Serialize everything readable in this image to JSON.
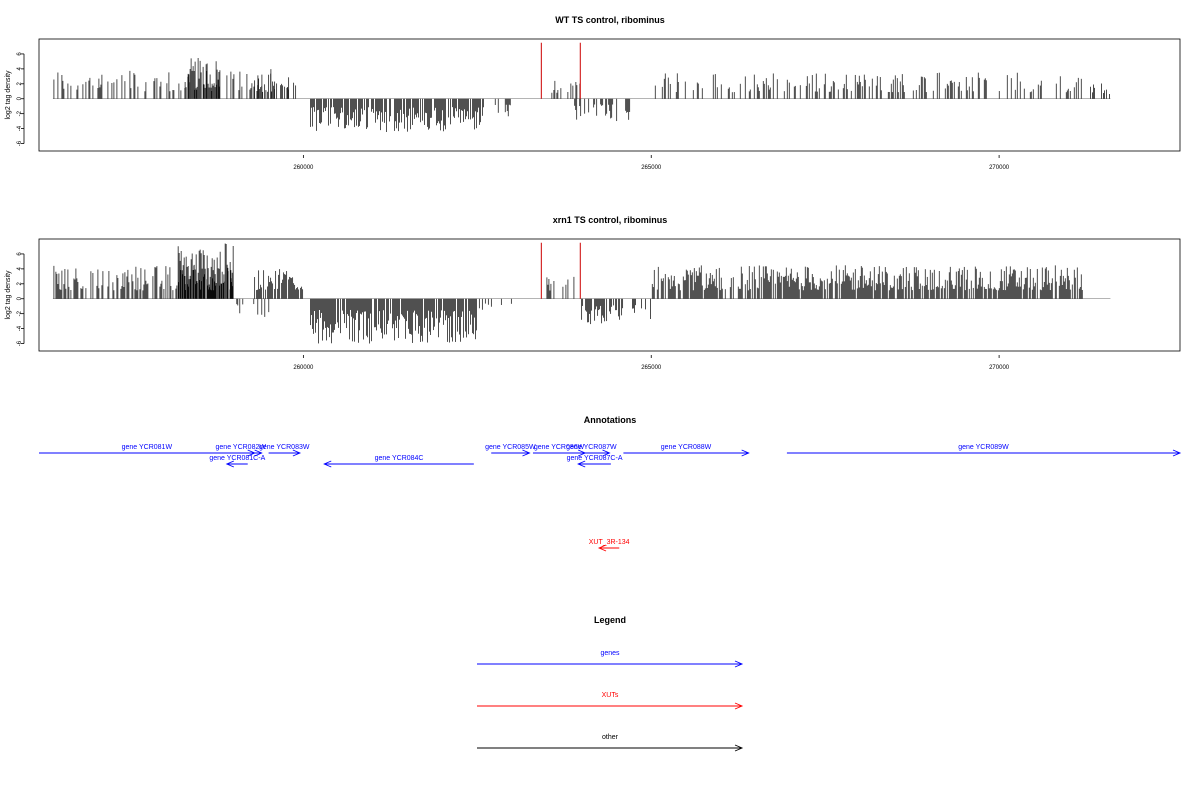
{
  "chart_data": [
    {
      "type": "bar",
      "title": "WT TS control, ribominus",
      "ylabel": "log2 tag density",
      "xlabel": "",
      "xlim": [
        256200,
        272600
      ],
      "ylim": [
        -7,
        8
      ],
      "x_ticks": [
        260000,
        265000,
        270000
      ],
      "x_tick_labels": [
        "260000",
        "265000",
        "270000"
      ],
      "y_ticks": [
        6,
        4,
        2,
        0,
        -2,
        -4,
        -6
      ],
      "bar_color": "#000000",
      "marker_color": "#cc0000",
      "signal_regions": [
        {
          "start": 256400,
          "end": 259800,
          "sign": 1,
          "max": 4,
          "density": 0.35
        },
        {
          "start": 258300,
          "end": 258800,
          "sign": 1,
          "max": 5.5,
          "density": 0.9
        },
        {
          "start": 259300,
          "end": 259900,
          "sign": 1,
          "max": 3.5,
          "density": 0.5
        },
        {
          "start": 260100,
          "end": 262600,
          "sign": -1,
          "max": 4.5,
          "density": 0.8
        },
        {
          "start": 262700,
          "end": 263000,
          "sign": -1,
          "max": 3.2,
          "density": 0.3
        },
        {
          "start": 263500,
          "end": 264000,
          "sign": 1,
          "max": 3,
          "density": 0.3
        },
        {
          "start": 263900,
          "end": 264700,
          "sign": -1,
          "max": 3,
          "density": 0.4
        },
        {
          "start": 265000,
          "end": 271200,
          "sign": 1,
          "max": 3.5,
          "density": 0.35
        },
        {
          "start": 271300,
          "end": 271600,
          "sign": 1,
          "max": 2.5,
          "density": 0.3
        }
      ],
      "markers": [
        {
          "x": 263420,
          "y": 7.5
        },
        {
          "x": 263980,
          "y": 7.5
        }
      ]
    },
    {
      "type": "bar",
      "title": "xrn1 TS control, ribominus",
      "ylabel": "log2 tag density",
      "xlabel": "",
      "xlim": [
        256200,
        272600
      ],
      "ylim": [
        -7,
        8
      ],
      "x_ticks": [
        260000,
        265000,
        270000
      ],
      "x_tick_labels": [
        "260000",
        "265000",
        "270000"
      ],
      "y_ticks": [
        6,
        4,
        2,
        0,
        -2,
        -4,
        -6
      ],
      "bar_color": "#000000",
      "marker_color": "#cc0000",
      "signal_regions": [
        {
          "start": 256400,
          "end": 259000,
          "sign": 1,
          "max": 4.5,
          "density": 0.6
        },
        {
          "start": 258200,
          "end": 259000,
          "sign": 1,
          "max": 7.5,
          "density": 0.95
        },
        {
          "start": 259300,
          "end": 260000,
          "sign": 1,
          "max": 4.5,
          "density": 0.8
        },
        {
          "start": 259000,
          "end": 259600,
          "sign": -1,
          "max": 2.5,
          "density": 0.3
        },
        {
          "start": 260100,
          "end": 262500,
          "sign": -1,
          "max": 6,
          "density": 0.9
        },
        {
          "start": 262500,
          "end": 263000,
          "sign": -1,
          "max": 1.5,
          "density": 0.2
        },
        {
          "start": 263400,
          "end": 263900,
          "sign": 1,
          "max": 3,
          "density": 0.4
        },
        {
          "start": 264000,
          "end": 264600,
          "sign": -1,
          "max": 3.5,
          "density": 0.7
        },
        {
          "start": 264700,
          "end": 265000,
          "sign": -1,
          "max": 3,
          "density": 0.4
        },
        {
          "start": 265000,
          "end": 271200,
          "sign": 1,
          "max": 4.5,
          "density": 0.8
        }
      ],
      "markers": [
        {
          "x": 263420,
          "y": 7.5
        },
        {
          "x": 263980,
          "y": 7.5
        }
      ]
    }
  ],
  "annotations": {
    "title": "Annotations",
    "colors": {
      "genes": "#0000ff",
      "XUTs": "#ff0000",
      "other": "#000000"
    },
    "features": [
      {
        "name": "gene YCR081W",
        "start": 256200,
        "end": 259300,
        "strand": "+",
        "row": 0,
        "type": "genes"
      },
      {
        "name": "gene YCR082W",
        "start": 258800,
        "end": 259400,
        "strand": "+",
        "row": 0,
        "type": "genes"
      },
      {
        "name": "gene YCR083W",
        "start": 259500,
        "end": 259950,
        "strand": "+",
        "row": 0,
        "type": "genes"
      },
      {
        "name": "gene YCR081C-A",
        "start": 258900,
        "end": 259200,
        "strand": "-",
        "row": 1,
        "type": "genes"
      },
      {
        "name": "gene YCR084C",
        "start": 260300,
        "end": 262450,
        "strand": "-",
        "row": 1,
        "type": "genes"
      },
      {
        "name": "gene YCR085W",
        "start": 262700,
        "end": 263250,
        "strand": "+",
        "row": 0,
        "type": "genes"
      },
      {
        "name": "gene YCR086W",
        "start": 263300,
        "end": 264050,
        "strand": "+",
        "row": 0,
        "type": "genes"
      },
      {
        "name": "gene YCR087W",
        "start": 263880,
        "end": 264400,
        "strand": "+",
        "row": 0,
        "type": "genes"
      },
      {
        "name": "gene YCR087C-A",
        "start": 263950,
        "end": 264420,
        "strand": "-",
        "row": 1,
        "type": "genes"
      },
      {
        "name": "gene YCR088W",
        "start": 264600,
        "end": 266400,
        "strand": "+",
        "row": 0,
        "type": "genes"
      },
      {
        "name": "gene YCR089W",
        "start": 266950,
        "end": 272600,
        "strand": "+",
        "row": 0,
        "type": "genes"
      },
      {
        "name": "XUT_3R-134",
        "start": 264250,
        "end": 264540,
        "strand": "-",
        "row": 2,
        "type": "XUTs"
      }
    ]
  },
  "legend": {
    "title": "Legend",
    "items": [
      {
        "label": "genes",
        "color": "#0000ff"
      },
      {
        "label": "XUTs",
        "color": "#ff0000"
      },
      {
        "label": "other",
        "color": "#000000"
      }
    ]
  }
}
